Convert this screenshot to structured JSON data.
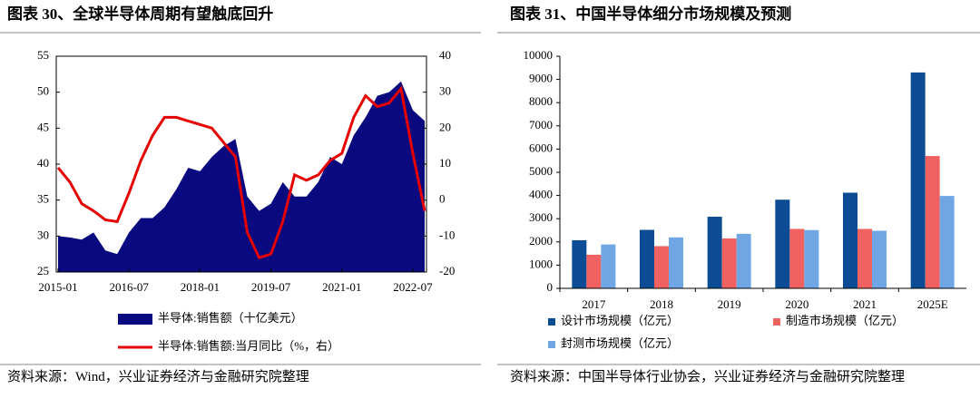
{
  "chart_data": [
    {
      "type": "combo",
      "title": "图表 30、全球半导体周期有望触底回升",
      "x": [
        "2015-01",
        "2015-04",
        "2015-07",
        "2015-10",
        "2016-01",
        "2016-04",
        "2016-07",
        "2016-10",
        "2017-01",
        "2017-04",
        "2017-07",
        "2017-10",
        "2018-01",
        "2018-04",
        "2018-07",
        "2018-10",
        "2019-01",
        "2019-04",
        "2019-07",
        "2019-10",
        "2020-01",
        "2020-04",
        "2020-07",
        "2020-10",
        "2021-01",
        "2021-04",
        "2021-07",
        "2021-10",
        "2022-01",
        "2022-04",
        "2022-07",
        "2022-10"
      ],
      "xticks": [
        "2015-01",
        "2016-07",
        "2018-01",
        "2019-07",
        "2021-01",
        "2022-07"
      ],
      "series": [
        {
          "name": "半导体:销售额（十亿美元）",
          "kind": "area",
          "color": "#0a0a80",
          "values": [
            30,
            29.8,
            29.5,
            30.5,
            28,
            27.5,
            30.5,
            32.5,
            32.5,
            34,
            36.5,
            39.5,
            39,
            41,
            42.5,
            43.5,
            35.5,
            33.5,
            34.5,
            37.5,
            35.5,
            35.5,
            37.5,
            41,
            40,
            44,
            46.5,
            49.5,
            50,
            51.5,
            47.5,
            46
          ]
        },
        {
          "name": "半导体:销售额:当月同比（%，右）",
          "kind": "line",
          "axis": "y2",
          "color": "#e60000",
          "values": [
            9,
            5,
            -1,
            -3,
            -5.5,
            -6,
            2,
            11,
            18,
            23,
            23,
            22,
            21,
            20,
            16,
            12,
            -9,
            -16,
            -15,
            -6,
            7,
            5.5,
            7,
            11,
            13,
            23,
            29,
            26,
            27,
            31,
            13,
            -3
          ]
        }
      ],
      "ylim": [
        25,
        55
      ],
      "yticks": [
        25,
        30,
        35,
        40,
        45,
        50,
        55
      ],
      "y2lim": [
        -20,
        40
      ],
      "y2ticks": [
        -20,
        -10,
        0,
        10,
        20,
        30,
        40
      ],
      "source": "资料来源：Wind，兴业证券经济与金融研究院整理"
    },
    {
      "type": "bar",
      "title": "图表 31、中国半导体细分市场规模及预测",
      "categories": [
        "2017",
        "2018",
        "2019",
        "2020",
        "2021",
        "2025E"
      ],
      "series": [
        {
          "name": "设计市场规模（亿元）",
          "color": "#0b4c94",
          "values": [
            2073,
            2519,
            3085,
            3819,
            4120,
            9300
          ]
        },
        {
          "name": "制造市场规模（亿元）",
          "color": "#f06262",
          "values": [
            1448,
            1818,
            2149,
            2560,
            2560,
            5700
          ]
        },
        {
          "name": "封测市场规模（亿元）",
          "color": "#6fa6e3",
          "values": [
            1890,
            2194,
            2350,
            2510,
            2480,
            3980
          ]
        }
      ],
      "ylim": [
        0,
        10000
      ],
      "yticks": [
        0,
        1000,
        2000,
        3000,
        4000,
        5000,
        6000,
        7000,
        8000,
        9000,
        10000
      ],
      "source": "资料来源：中国半导体行业协会，兴业证券经济与金融研究院整理"
    }
  ]
}
